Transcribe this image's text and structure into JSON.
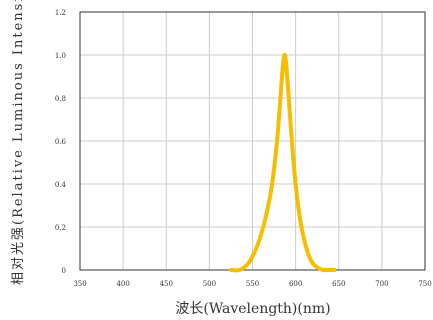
{
  "chart_data": {
    "type": "line",
    "title": "",
    "xlabel": "波长(Wavelength)(nm)",
    "ylabel": "相对光强(Relative Luminous Intensity)",
    "xlim": [
      350,
      750
    ],
    "ylim": [
      0,
      1.2
    ],
    "x_ticks": [
      "350",
      "400",
      "450",
      "500",
      "550",
      "600",
      "650",
      "700",
      "750"
    ],
    "y_ticks": [
      "0",
      "0.2",
      "0.4",
      "0.6",
      "0.8",
      "1.0",
      "1.2"
    ],
    "grid": true,
    "series": [
      {
        "color": "#f5be00",
        "x": [
          525,
          535,
          545,
          552,
          558,
          565,
          572,
          578,
          582,
          585,
          587,
          589,
          592,
          596,
          600,
          605,
          610,
          615,
          620,
          626,
          632,
          638,
          645
        ],
        "y": [
          0.0,
          0.0,
          0.03,
          0.08,
          0.14,
          0.24,
          0.38,
          0.58,
          0.78,
          0.94,
          1.0,
          0.96,
          0.8,
          0.58,
          0.4,
          0.24,
          0.14,
          0.07,
          0.03,
          0.01,
          0.0,
          0.0,
          0.0
        ]
      }
    ]
  }
}
